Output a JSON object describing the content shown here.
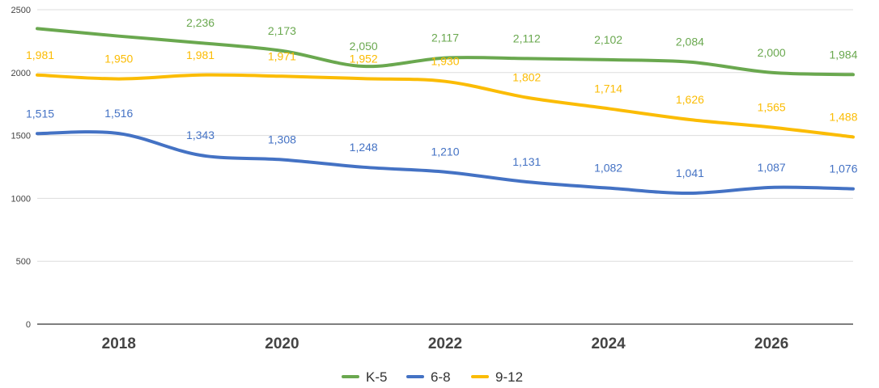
{
  "chart_data": {
    "type": "line",
    "title": "",
    "xlabel": "",
    "ylabel": "",
    "x": [
      2017,
      2018,
      2019,
      2020,
      2021,
      2022,
      2023,
      2024,
      2025,
      2026,
      2027
    ],
    "x_tick_labels": [
      "2018",
      "2020",
      "2022",
      "2024",
      "2026"
    ],
    "x_tick_values": [
      2018,
      2020,
      2022,
      2024,
      2026
    ],
    "xlim": [
      2017,
      2027
    ],
    "ylim": [
      0,
      2500
    ],
    "y_ticks": [
      "0",
      "500",
      "1000",
      "1500",
      "2000",
      "2500"
    ],
    "y_tick_values": [
      0,
      500,
      1000,
      1500,
      2000,
      2500
    ],
    "grid": "horizontal",
    "legend_position": "bottom",
    "series": [
      {
        "name": "K-5",
        "color": "#6aa84f",
        "values": [
          2350,
          2290,
          2236,
          2173,
          2050,
          2117,
          2112,
          2102,
          2084,
          2000,
          1984
        ],
        "labels": [
          "",
          "",
          "2,236",
          "2,173",
          "2,050",
          "2,117",
          "2,112",
          "2,102",
          "2,084",
          "2,000",
          "1,984"
        ]
      },
      {
        "name": "6-8",
        "color": "#4472c4",
        "values": [
          1515,
          1516,
          1343,
          1308,
          1248,
          1210,
          1131,
          1082,
          1041,
          1087,
          1076
        ],
        "labels": [
          "1,515",
          "1,516",
          "1,343",
          "1,308",
          "1,248",
          "1,210",
          "1,131",
          "1,082",
          "1,041",
          "1,087",
          "1,076"
        ]
      },
      {
        "name": "9-12",
        "color": "#fbbc04",
        "values": [
          1981,
          1950,
          1981,
          1971,
          1952,
          1930,
          1802,
          1714,
          1626,
          1565,
          1488
        ],
        "labels": [
          "1,981",
          "1,950",
          "1,981",
          "1,971",
          "1,952",
          "1,930",
          "1,802",
          "1,714",
          "1,626",
          "1,565",
          "1,488"
        ]
      }
    ]
  }
}
